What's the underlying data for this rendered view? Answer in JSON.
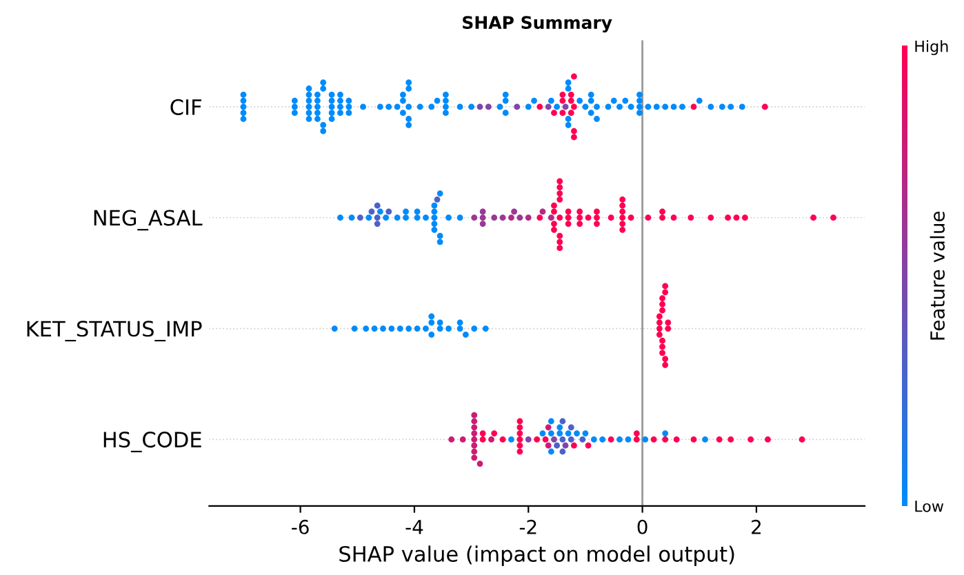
{
  "chart_data": {
    "type": "scatter",
    "title": "SHAP Summary",
    "xlabel": "SHAP value (impact on model output)",
    "clabel": "Feature value",
    "orientation": "horizontal",
    "categories": [
      "CIF",
      "NEG_ASAL",
      "KET_STATUS_IMP",
      "HS_CODE"
    ],
    "xlim": [
      -7.6,
      3.9
    ],
    "xticks": [
      -6,
      -4,
      -2,
      0,
      2
    ],
    "grid": "y",
    "marker": "circle",
    "clim": [
      0,
      1
    ],
    "cticks": [
      {
        "value": 0,
        "label": "Low"
      },
      {
        "value": 1,
        "label": "High"
      }
    ],
    "ref_lines": [
      {
        "axis": "x",
        "value": 0,
        "label": null,
        "color": "#999999"
      }
    ],
    "series": [
      {
        "x": [
          "CIF",
          "CIF",
          "CIF",
          "CIF",
          "CIF",
          "CIF",
          "CIF",
          "CIF",
          "CIF",
          "CIF",
          "CIF",
          "CIF",
          "CIF",
          "CIF",
          "CIF",
          "CIF",
          "CIF",
          "CIF",
          "CIF",
          "CIF",
          "CIF",
          "CIF",
          "CIF",
          "CIF",
          "CIF",
          "CIF",
          "CIF",
          "CIF",
          "CIF",
          "CIF",
          "CIF",
          "CIF",
          "CIF",
          "CIF",
          "CIF",
          "CIF",
          "CIF",
          "CIF",
          "CIF",
          "CIF",
          "CIF",
          "CIF",
          "CIF",
          "CIF",
          "CIF",
          "CIF",
          "CIF",
          "CIF",
          "CIF",
          "CIF",
          "CIF",
          "CIF",
          "CIF",
          "CIF",
          "CIF",
          "CIF",
          "CIF",
          "CIF",
          "CIF",
          "CIF",
          "CIF",
          "CIF",
          "CIF",
          "CIF",
          "CIF",
          "CIF",
          "CIF",
          "CIF",
          "CIF",
          "CIF",
          "CIF",
          "CIF",
          "CIF",
          "CIF",
          "CIF",
          "CIF",
          "CIF",
          "CIF",
          "CIF",
          "CIF",
          "CIF",
          "CIF",
          "CIF",
          "CIF",
          "CIF",
          "CIF",
          "CIF",
          "CIF",
          "CIF",
          "CIF",
          "CIF",
          "CIF",
          "CIF",
          "CIF",
          "CIF",
          "CIF",
          "CIF",
          "CIF",
          "CIF",
          "CIF",
          "CIF",
          "CIF",
          "CIF",
          "CIF",
          "CIF",
          "CIF",
          "CIF",
          "CIF",
          "CIF",
          "CIF",
          "CIF",
          "CIF",
          "CIF"
        ],
        "values": [
          -7.0,
          -7.0,
          -7.0,
          -7.0,
          -7.0,
          -6.1,
          -6.1,
          -6.1,
          -5.85,
          -5.85,
          -5.85,
          -5.85,
          -5.85,
          -5.85,
          -5.7,
          -5.7,
          -5.7,
          -5.7,
          -5.7,
          -5.6,
          -5.6,
          -5.6,
          -5.6,
          -5.45,
          -5.45,
          -5.45,
          -5.45,
          -5.45,
          -5.3,
          -5.3,
          -5.3,
          -5.3,
          -5.15,
          -5.15,
          -5.15,
          -4.9,
          -4.6,
          -4.45,
          -4.3,
          -4.2,
          -4.2,
          -4.2,
          -4.1,
          -4.1,
          -4.1,
          -4.1,
          -4.1,
          -3.9,
          -3.7,
          -3.6,
          -3.45,
          -3.45,
          -3.45,
          -3.45,
          -3.2,
          -3.0,
          -2.85,
          -2.7,
          -2.5,
          -2.4,
          -2.4,
          -2.4,
          -2.2,
          -2.0,
          -1.9,
          -1.8,
          -1.65,
          -1.6,
          -1.55,
          -1.5,
          -1.4,
          -1.4,
          -1.4,
          -1.3,
          -1.25,
          -1.35,
          -1.3,
          -1.25,
          -1.3,
          -1.25,
          -1.3,
          -1.2,
          -1.2,
          -1.2,
          -1.2,
          -1.1,
          -1.0,
          -0.9,
          -0.9,
          -0.9,
          -0.8,
          -0.8,
          -0.6,
          -0.5,
          -0.4,
          -0.3,
          -0.2,
          -0.05,
          -0.05,
          -0.05,
          -0.05,
          0.1,
          0.25,
          0.4,
          0.55,
          0.7,
          0.9,
          1.0,
          1.2,
          1.4,
          1.55,
          1.75,
          2.15
        ],
        "colors": [
          "#008bfb",
          "#008bfb",
          "#008bfb",
          "#008bfb",
          "#008bfb",
          "#008bfb",
          "#008bfb",
          "#008bfb",
          "#008bfb",
          "#008bfb",
          "#008bfb",
          "#008bfb",
          "#008bfb",
          "#008bfb",
          "#008bfb",
          "#008bfb",
          "#008bfb",
          "#008bfb",
          "#008bfb",
          "#008bfb",
          "#008bfb",
          "#008bfb",
          "#008bfb",
          "#008bfb",
          "#008bfb",
          "#008bfb",
          "#008bfb",
          "#008bfb",
          "#008bfb",
          "#008bfb",
          "#008bfb",
          "#008bfb",
          "#008bfb",
          "#008bfb",
          "#008bfb",
          "#008bfb",
          "#008bfb",
          "#008bfb",
          "#008bfb",
          "#008bfb",
          "#008bfb",
          "#008bfb",
          "#008bfb",
          "#008bfb",
          "#008bfb",
          "#008bfb",
          "#008bfb",
          "#008bfb",
          "#008bfb",
          "#008bfb",
          "#008bfb",
          "#008bfb",
          "#008bfb",
          "#008bfb",
          "#008bfb",
          "#008bfb",
          "#8046a6",
          "#8046a6",
          "#008bfb",
          "#008bfb",
          "#008bfb",
          "#008bfb",
          "#8046a6",
          "#008bfb",
          "#008bfb",
          "#ff0052",
          "#8046a6",
          "#008bfb",
          "#ff0052",
          "#008bfb",
          "#ff0052",
          "#ff0052",
          "#ff0052",
          "#008bfb",
          "#ff0052",
          "#8046a6",
          "#008bfb",
          "#ff0052",
          "#008bfb",
          "#ff0052",
          "#008bfb",
          "#ff0052",
          "#ff0052",
          "#ff0052",
          "#ff0052",
          "#008bfb",
          "#008bfb",
          "#008bfb",
          "#008bfb",
          "#008bfb",
          "#008bfb",
          "#008bfb",
          "#008bfb",
          "#008bfb",
          "#008bfb",
          "#008bfb",
          "#008bfb",
          "#008bfb",
          "#008bfb",
          "#008bfb",
          "#008bfb",
          "#008bfb",
          "#008bfb",
          "#008bfb",
          "#008bfb",
          "#008bfb",
          "#ff0052",
          "#008bfb",
          "#008bfb",
          "#008bfb",
          "#008bfb",
          "#008bfb",
          "#ff0052"
        ]
      },
      {
        "x": [
          "NEG_ASAL",
          "NEG_ASAL",
          "NEG_ASAL",
          "NEG_ASAL",
          "NEG_ASAL",
          "NEG_ASAL",
          "NEG_ASAL",
          "NEG_ASAL",
          "NEG_ASAL",
          "NEG_ASAL",
          "NEG_ASAL",
          "NEG_ASAL",
          "NEG_ASAL",
          "NEG_ASAL",
          "NEG_ASAL",
          "NEG_ASAL",
          "NEG_ASAL",
          "NEG_ASAL",
          "NEG_ASAL",
          "NEG_ASAL",
          "NEG_ASAL",
          "NEG_ASAL",
          "NEG_ASAL",
          "NEG_ASAL",
          "NEG_ASAL",
          "NEG_ASAL",
          "NEG_ASAL",
          "NEG_ASAL",
          "NEG_ASAL",
          "NEG_ASAL",
          "NEG_ASAL",
          "NEG_ASAL",
          "NEG_ASAL",
          "NEG_ASAL",
          "NEG_ASAL",
          "NEG_ASAL",
          "NEG_ASAL",
          "NEG_ASAL",
          "NEG_ASAL",
          "NEG_ASAL",
          "NEG_ASAL",
          "NEG_ASAL",
          "NEG_ASAL",
          "NEG_ASAL",
          "NEG_ASAL",
          "NEG_ASAL",
          "NEG_ASAL",
          "NEG_ASAL",
          "NEG_ASAL",
          "NEG_ASAL",
          "NEG_ASAL",
          "NEG_ASAL",
          "NEG_ASAL",
          "NEG_ASAL",
          "NEG_ASAL",
          "NEG_ASAL",
          "NEG_ASAL",
          "NEG_ASAL",
          "NEG_ASAL",
          "NEG_ASAL",
          "NEG_ASAL",
          "NEG_ASAL",
          "NEG_ASAL",
          "NEG_ASAL",
          "NEG_ASAL",
          "NEG_ASAL",
          "NEG_ASAL",
          "NEG_ASAL",
          "NEG_ASAL",
          "NEG_ASAL",
          "NEG_ASAL",
          "NEG_ASAL",
          "NEG_ASAL",
          "NEG_ASAL",
          "NEG_ASAL",
          "NEG_ASAL",
          "NEG_ASAL",
          "NEG_ASAL",
          "NEG_ASAL",
          "NEG_ASAL",
          "NEG_ASAL",
          "NEG_ASAL"
        ],
        "values": [
          -5.3,
          -5.1,
          -4.95,
          -4.8,
          -4.75,
          -4.65,
          -4.65,
          -4.6,
          -4.65,
          -4.5,
          -4.45,
          -4.3,
          -4.15,
          -4.15,
          -3.95,
          -3.95,
          -3.8,
          -3.65,
          -3.65,
          -3.65,
          -3.6,
          -3.65,
          -3.65,
          -3.55,
          -3.55,
          -3.55,
          -3.4,
          -3.2,
          -2.95,
          -2.8,
          -2.8,
          -2.8,
          -2.6,
          -2.45,
          -2.3,
          -2.25,
          -2.15,
          -2.0,
          -1.8,
          -1.75,
          -1.55,
          -1.55,
          -1.55,
          -1.6,
          -1.55,
          -1.45,
          -1.45,
          -1.45,
          -1.45,
          -1.45,
          -1.45,
          -1.45,
          -1.45,
          -1.3,
          -1.3,
          -1.3,
          -1.1,
          -1.1,
          -1.1,
          -0.95,
          -0.8,
          -0.8,
          -0.8,
          -0.55,
          -0.35,
          -0.35,
          -0.35,
          -0.35,
          -0.35,
          -0.35,
          -0.2,
          0.1,
          0.35,
          0.35,
          0.55,
          0.85,
          1.2,
          1.5,
          1.65,
          1.8,
          3.0,
          3.35
        ],
        "colors": [
          "#008bfb",
          "#008bfb",
          "#4d61c8",
          "#008bfb",
          "#4d61c8",
          "#4d61c8",
          "#4d61c8",
          "#008bfb",
          "#4d61c8",
          "#008bfb",
          "#4d61c8",
          "#008bfb",
          "#008bfb",
          "#008bfb",
          "#008bfb",
          "#008bfb",
          "#008bfb",
          "#008bfb",
          "#008bfb",
          "#008bfb",
          "#4d61c8",
          "#008bfb",
          "#008bfb",
          "#008bfb",
          "#008bfb",
          "#008bfb",
          "#008bfb",
          "#008bfb",
          "#993895",
          "#993895",
          "#993895",
          "#993895",
          "#993895",
          "#993895",
          "#b32a84",
          "#993895",
          "#993895",
          "#b32a84",
          "#ff0052",
          "#b32a84",
          "#ff0052",
          "#ff0052",
          "#ff0052",
          "#b32a84",
          "#ff0052",
          "#ff0052",
          "#ff0052",
          "#ff0052",
          "#ff0052",
          "#ff0052",
          "#ff0052",
          "#ff0052",
          "#ff0052",
          "#ff0052",
          "#ff0052",
          "#ff0052",
          "#ff0052",
          "#ff0052",
          "#ff0052",
          "#ff0052",
          "#ff0052",
          "#ff0052",
          "#ff0052",
          "#ff0052",
          "#ff0052",
          "#ff0052",
          "#ff0052",
          "#ff0052",
          "#ff0052",
          "#ff0052",
          "#ff0052",
          "#ff0052",
          "#ff0052",
          "#ff0052",
          "#ff0052",
          "#ff0052",
          "#ff0052",
          "#ff0052",
          "#ff0052",
          "#ff0052",
          "#ff0052",
          "#ff0052"
        ]
      },
      {
        "x": [
          "KET_STATUS_IMP",
          "KET_STATUS_IMP",
          "KET_STATUS_IMP",
          "KET_STATUS_IMP",
          "KET_STATUS_IMP",
          "KET_STATUS_IMP",
          "KET_STATUS_IMP",
          "KET_STATUS_IMP",
          "KET_STATUS_IMP",
          "KET_STATUS_IMP",
          "KET_STATUS_IMP",
          "KET_STATUS_IMP",
          "KET_STATUS_IMP",
          "KET_STATUS_IMP",
          "KET_STATUS_IMP",
          "KET_STATUS_IMP",
          "KET_STATUS_IMP",
          "KET_STATUS_IMP",
          "KET_STATUS_IMP",
          "KET_STATUS_IMP",
          "KET_STATUS_IMP",
          "KET_STATUS_IMP",
          "KET_STATUS_IMP",
          "KET_STATUS_IMP",
          "KET_STATUS_IMP",
          "KET_STATUS_IMP",
          "KET_STATUS_IMP",
          "KET_STATUS_IMP",
          "KET_STATUS_IMP",
          "KET_STATUS_IMP",
          "KET_STATUS_IMP",
          "KET_STATUS_IMP",
          "KET_STATUS_IMP",
          "KET_STATUS_IMP",
          "KET_STATUS_IMP",
          "KET_STATUS_IMP",
          "KET_STATUS_IMP"
        ],
        "values": [
          -5.4,
          -5.05,
          -4.85,
          -4.7,
          -4.55,
          -4.4,
          -4.25,
          -4.1,
          -3.95,
          -3.8,
          -3.7,
          -3.7,
          -3.7,
          -3.55,
          -3.55,
          -3.4,
          -3.2,
          -3.2,
          -3.1,
          -2.95,
          -2.75,
          0.3,
          0.3,
          0.3,
          0.3,
          0.35,
          0.35,
          0.35,
          0.35,
          0.35,
          0.35,
          0.4,
          0.4,
          0.4,
          0.4,
          0.45,
          0.45
        ],
        "colors": [
          "#008bfb",
          "#008bfb",
          "#008bfb",
          "#008bfb",
          "#008bfb",
          "#008bfb",
          "#008bfb",
          "#008bfb",
          "#008bfb",
          "#008bfb",
          "#008bfb",
          "#008bfb",
          "#008bfb",
          "#008bfb",
          "#008bfb",
          "#008bfb",
          "#008bfb",
          "#008bfb",
          "#008bfb",
          "#008bfb",
          "#008bfb",
          "#ff0052",
          "#ff0052",
          "#ff0052",
          "#ff0052",
          "#ff0052",
          "#ff0052",
          "#ff0052",
          "#ff0052",
          "#ff0052",
          "#ff0052",
          "#ff0052",
          "#ff0052",
          "#ff0052",
          "#ff0052",
          "#ff0052",
          "#ff0052"
        ]
      },
      {
        "x": [
          "HS_CODE",
          "HS_CODE",
          "HS_CODE",
          "HS_CODE",
          "HS_CODE",
          "HS_CODE",
          "HS_CODE",
          "HS_CODE",
          "HS_CODE",
          "HS_CODE",
          "HS_CODE",
          "HS_CODE",
          "HS_CODE",
          "HS_CODE",
          "HS_CODE",
          "HS_CODE",
          "HS_CODE",
          "HS_CODE",
          "HS_CODE",
          "HS_CODE",
          "HS_CODE",
          "HS_CODE",
          "HS_CODE",
          "HS_CODE",
          "HS_CODE",
          "HS_CODE",
          "HS_CODE",
          "HS_CODE",
          "HS_CODE",
          "HS_CODE",
          "HS_CODE",
          "HS_CODE",
          "HS_CODE",
          "HS_CODE",
          "HS_CODE",
          "HS_CODE",
          "HS_CODE",
          "HS_CODE",
          "HS_CODE",
          "HS_CODE",
          "HS_CODE",
          "HS_CODE",
          "HS_CODE",
          "HS_CODE",
          "HS_CODE",
          "HS_CODE",
          "HS_CODE",
          "HS_CODE",
          "HS_CODE",
          "HS_CODE",
          "HS_CODE",
          "HS_CODE",
          "HS_CODE",
          "HS_CODE",
          "HS_CODE",
          "HS_CODE",
          "HS_CODE",
          "HS_CODE",
          "HS_CODE",
          "HS_CODE",
          "HS_CODE",
          "HS_CODE",
          "HS_CODE",
          "HS_CODE",
          "HS_CODE",
          "HS_CODE",
          "HS_CODE"
        ],
        "values": [
          -3.35,
          -3.15,
          -2.95,
          -2.95,
          -2.95,
          -2.95,
          -2.95,
          -2.95,
          -2.95,
          -2.95,
          -2.8,
          -2.85,
          -2.8,
          -2.6,
          -2.65,
          -2.45,
          -2.3,
          -2.15,
          -2.15,
          -2.15,
          -2.15,
          -2.15,
          -2.15,
          -2.0,
          -1.85,
          -1.75,
          -1.6,
          -1.65,
          -1.55,
          -1.6,
          -1.7,
          -1.5,
          -1.6,
          -1.65,
          -1.45,
          -1.4,
          -1.4,
          -1.45,
          -1.35,
          -1.4,
          -1.3,
          -1.25,
          -1.2,
          -1.25,
          -1.15,
          -1.05,
          -1.0,
          -0.95,
          -0.85,
          -0.7,
          -0.55,
          -0.4,
          -0.25,
          -0.1,
          -0.1,
          0.05,
          0.2,
          0.4,
          0.4,
          0.6,
          0.9,
          1.1,
          1.35,
          1.55,
          1.9,
          2.2,
          2.8
        ],
        "colors": [
          "#cc1c74",
          "#cc1c74",
          "#cc1c74",
          "#cc1c74",
          "#cc1c74",
          "#cc1c74",
          "#cc1c74",
          "#cc1c74",
          "#cc1c74",
          "#cc1c74",
          "#ff0052",
          "#cc1c74",
          "#ff0052",
          "#ff0052",
          "#cc1c74",
          "#ff0052",
          "#008bfb",
          "#ff0052",
          "#ff0052",
          "#ff0052",
          "#ff0052",
          "#ff0052",
          "#ff0052",
          "#8046a6",
          "#ff0052",
          "#008bfb",
          "#008bfb",
          "#cc1c74",
          "#8046a6",
          "#008bfb",
          "#ff0052",
          "#4d61c8",
          "#008bfb",
          "#cc1c74",
          "#008bfb",
          "#4d61c8",
          "#4d61c8",
          "#008bfb",
          "#8046a6",
          "#4d61c8",
          "#008bfb",
          "#4d61c8",
          "#ff0052",
          "#4d61c8",
          "#008bfb",
          "#4d61c8",
          "#008bfb",
          "#ff0052",
          "#008bfb",
          "#008bfb",
          "#ff0052",
          "#008bfb",
          "#008bfb",
          "#ff0052",
          "#ff0052",
          "#008bfb",
          "#ff0052",
          "#ff0052",
          "#008bfb",
          "#ff0052",
          "#ff0052",
          "#008bfb",
          "#ff0052",
          "#ff0052",
          "#ff0052",
          "#ff0052",
          "#ff0052"
        ]
      }
    ]
  }
}
